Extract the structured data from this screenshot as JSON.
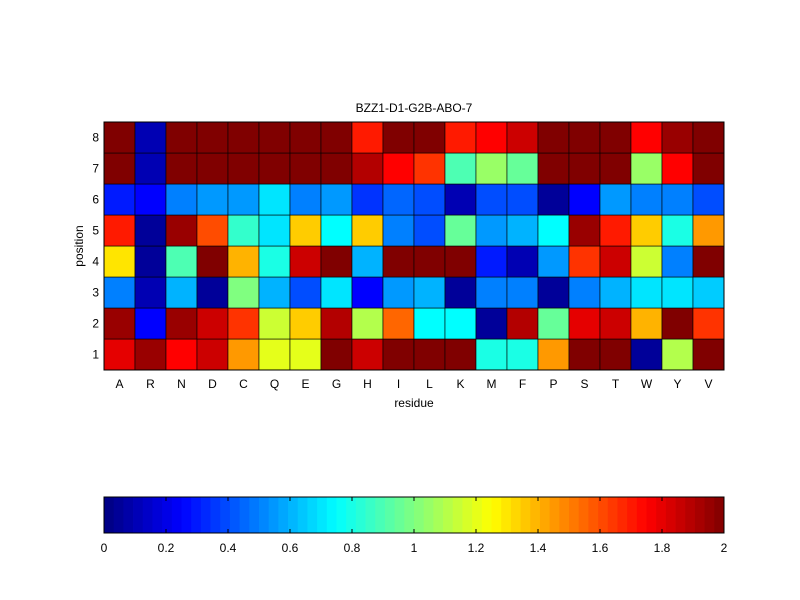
{
  "chart_data": {
    "type": "heatmap",
    "title": "BZZ1-D1-G2B-ABO-7",
    "xlabel": "residue",
    "ylabel": "position",
    "x": [
      "A",
      "R",
      "N",
      "D",
      "C",
      "Q",
      "E",
      "G",
      "H",
      "I",
      "L",
      "K",
      "M",
      "F",
      "P",
      "S",
      "T",
      "W",
      "Y",
      "V"
    ],
    "y": [
      1,
      2,
      3,
      4,
      5,
      6,
      7,
      8
    ],
    "colorscale": "jet",
    "clim": [
      0,
      2
    ],
    "colorbar": {
      "location": "bottom",
      "ticks": [
        0,
        0.2,
        0.4,
        0.6,
        0.8,
        1,
        1.2,
        1.4,
        1.6,
        1.8,
        2
      ],
      "tick_labels": [
        "0",
        "0.2",
        "0.4",
        "0.6",
        "0.8",
        "1",
        "1.2",
        "1.4",
        "1.6",
        "1.8",
        "2"
      ]
    },
    "values": [
      [
        1.8,
        1.95,
        1.75,
        1.85,
        1.45,
        1.2,
        1.2,
        2.0,
        1.85,
        2.0,
        2.0,
        2.0,
        0.8,
        0.8,
        1.45,
        2.0,
        2.0,
        0.05,
        1.1,
        2.0
      ],
      [
        1.95,
        0.25,
        1.95,
        1.85,
        1.65,
        1.15,
        1.35,
        1.9,
        1.1,
        1.55,
        0.75,
        0.75,
        0.05,
        1.9,
        0.95,
        1.8,
        1.85,
        1.4,
        2.0,
        1.65
      ],
      [
        0.5,
        0.1,
        0.6,
        0.05,
        1.0,
        0.6,
        0.4,
        0.7,
        0.25,
        0.55,
        0.6,
        0.05,
        0.5,
        0.5,
        0.05,
        0.5,
        0.6,
        0.7,
        0.7,
        0.65
      ],
      [
        1.3,
        0.05,
        0.9,
        2.0,
        1.4,
        0.8,
        1.85,
        2.0,
        0.6,
        2.0,
        2.0,
        2.0,
        0.3,
        0.1,
        0.55,
        1.65,
        1.85,
        1.15,
        0.5,
        2.0
      ],
      [
        1.7,
        0.05,
        1.95,
        1.6,
        0.85,
        0.7,
        1.35,
        0.75,
        1.35,
        0.5,
        0.4,
        0.95,
        0.55,
        0.6,
        0.75,
        1.95,
        1.7,
        1.35,
        0.8,
        1.45
      ],
      [
        0.3,
        0.25,
        0.5,
        0.55,
        0.55,
        0.7,
        0.5,
        0.55,
        0.35,
        0.45,
        0.4,
        0.1,
        0.4,
        0.4,
        0.05,
        0.25,
        0.55,
        0.5,
        0.5,
        0.4
      ],
      [
        2.0,
        0.1,
        2.0,
        2.0,
        2.0,
        2.0,
        2.0,
        2.0,
        1.9,
        1.75,
        1.65,
        0.9,
        1.05,
        0.95,
        2.0,
        2.0,
        2.0,
        1.05,
        1.75,
        2.0
      ],
      [
        2.0,
        0.1,
        2.0,
        2.0,
        2.0,
        2.0,
        2.0,
        2.0,
        1.7,
        2.0,
        2.0,
        1.7,
        1.75,
        1.85,
        2.0,
        2.0,
        2.0,
        1.75,
        1.95,
        2.0
      ]
    ]
  }
}
